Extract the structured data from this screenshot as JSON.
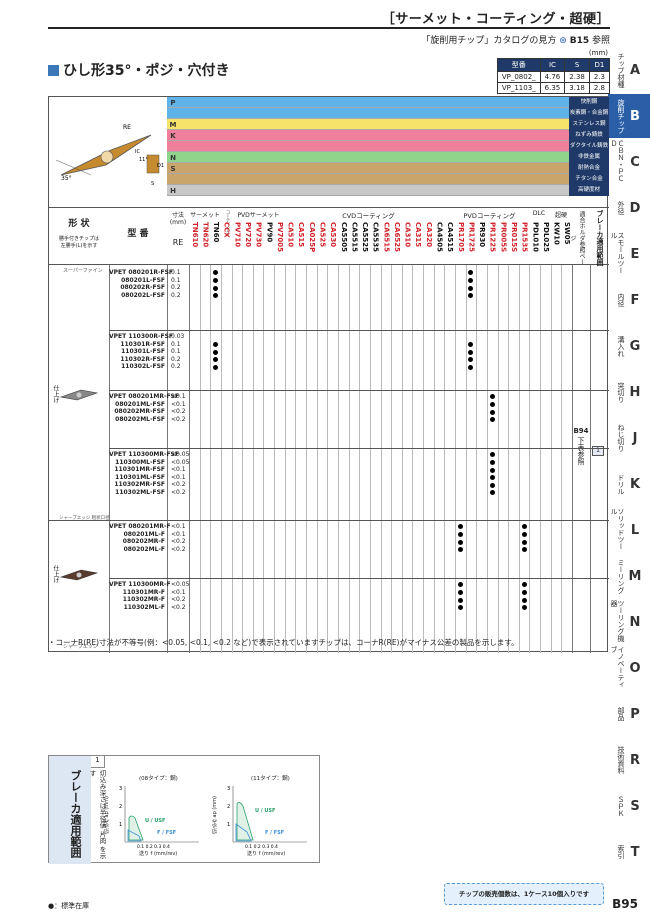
{
  "header": {
    "category": "［サーメット・コーティング・超硬］",
    "catalog_note_prefix": "「旋削用チップ」カタログの見方",
    "catalog_ref": "B15",
    "catalog_note_suffix": "参照",
    "unit": "(mm)"
  },
  "title": "ひし形35°・ポジ・穴付き",
  "dims": {
    "headers": [
      "型番",
      "IC",
      "S",
      "D1"
    ],
    "rows": [
      [
        "VP_0802_",
        "4.76",
        "2.38",
        "2.3"
      ],
      [
        "VP_1103_",
        "6.35",
        "3.18",
        "2.8"
      ]
    ]
  },
  "grades_iso": [
    {
      "key": "P",
      "label": "快削鋼",
      "color": "#5fb3e8"
    },
    {
      "key": "M",
      "label": "ステンレス鋼",
      "color": "#f6e36a"
    },
    {
      "key": "K",
      "label": "ダクタイル鋳鉄",
      "color": "#ef7f9a"
    },
    {
      "key": "N",
      "label": "非鉄金属",
      "color": "#8fd48a"
    },
    {
      "key": "S",
      "label": "耐熱合金",
      "color": "#c9a46b"
    },
    {
      "key": "H",
      "label": "高硬度材",
      "color": "#c8c8c8"
    }
  ],
  "grade_tags": [
    "快削鋼",
    "炭素鋼・合金鋼",
    "ステンレス鋼",
    "ねずみ鋳鉄",
    "ダクタイル鋳鉄",
    "非鉄金属",
    "耐熱合金",
    "チタン合金",
    "高硬度材"
  ],
  "col_headers": {
    "shape": "形 状",
    "model": "型 番",
    "shape_note": "勝手付きチップは\n左勝手(L)を示す",
    "dims": "寸法\n(mm)",
    "re": "RE",
    "cermet": "サーメット",
    "coated_cermet": "コーティング",
    "pvd_cermet": "PVDサーメット",
    "cvd": "CVDコーティング",
    "pvd": "PVDコーティング",
    "dlc": "DLC",
    "carbide": "超硬",
    "holder": "適合ホルダ参照ページ",
    "breaker": "ブレーカ適用範囲"
  },
  "grade_cols": [
    "TN610",
    "TN620",
    "TN60",
    "CCX",
    "PV710",
    "PV720",
    "PV730",
    "PV90",
    "PV7005",
    "CA510",
    "CA515",
    "CA025P",
    "CA525",
    "CA530",
    "CA5505",
    "CA5515",
    "CA5525",
    "CA5535",
    "CA6515",
    "CA6525",
    "CA310",
    "CA315",
    "CA320",
    "CA4505",
    "CA4515",
    "PR1705",
    "PR1725",
    "PR930",
    "PR1225",
    "PR005S",
    "PR015S",
    "PR1535",
    "PDL010",
    "PDL025",
    "KW10",
    "SW05"
  ],
  "labels": {
    "super_fine": "スーパーファイン",
    "sharp_bold": "シャープエッジ 粗状口径",
    "finishing": "仕上げ",
    "sharp_edge": "シャープエッジ",
    "holder_ref": "B94",
    "holder_ref2": "下表参照",
    "breaker_no": "1"
  },
  "groups": [
    {
      "models": [
        "VPET 080201R-FSF",
        "080201L-FSF",
        "080202R-FSF",
        "080202L-FSF"
      ],
      "re": [
        "0.1",
        "0.1",
        "0.2",
        "0.2"
      ]
    },
    {
      "models": [
        "VPET 110300R-FSF",
        "110301R-FSF",
        "110301L-FSF",
        "110302R-FSF",
        "110302L-FSF"
      ],
      "re": [
        "0.03",
        "0.1",
        "0.1",
        "0.2",
        "0.2"
      ]
    },
    {
      "models": [
        "VPET 080201MR-FSF",
        "080201ML-FSF",
        "080202MR-FSF",
        "080202ML-FSF"
      ],
      "re": [
        "<0.1",
        "<0.1",
        "<0.2",
        "<0.2"
      ]
    },
    {
      "models": [
        "VPET 110300MR-FSF",
        "110300ML-FSF",
        "110301MR-FSF",
        "110301ML-FSF",
        "110302MR-FSF",
        "110302ML-FSF"
      ],
      "re": [
        "<0.05",
        "<0.05",
        "<0.1",
        "<0.1",
        "<0.2",
        "<0.2"
      ]
    },
    {
      "models": [
        "VPET 080201MR-F",
        "080201ML-F",
        "080202MR-F",
        "080202ML-F"
      ],
      "re": [
        "<0.1",
        "<0.1",
        "<0.2",
        "<0.2"
      ]
    },
    {
      "models": [
        "VPET 110300MR-F",
        "110301MR-F",
        "110302MR-F",
        "110302ML-F"
      ],
      "re": [
        "<0.05",
        "<0.1",
        "<0.2",
        "<0.2"
      ]
    }
  ],
  "note": "・コーナR(RE)寸法が不等号(例：<0.05, <0.1, <0.2 など)で表示されていますチップは、コーナR(RE)がマイナス公差の製品を示します。",
  "breaker": {
    "title": "ブレーカ適用範囲",
    "sub": "切込み深さは半径値 片肉 を示す",
    "no": "1",
    "chart1": {
      "title": "(08タイプ：鋼)",
      "xlabel": "送り f (mm/rev)",
      "ylabel": "切込み ap (mm)",
      "xticks": [
        "0.1",
        "0.2",
        "0.3",
        "0.4"
      ],
      "yticks": [
        "1",
        "2",
        "3"
      ],
      "l1": "U / USF",
      "l2": "F / FSF"
    },
    "chart2": {
      "title": "(11タイプ：鋼)",
      "xlabel": "送り f (mm/rev)",
      "ylabel": "切込み ap (mm)",
      "xticks": [
        "0.1",
        "0.2",
        "0.3",
        "0.4"
      ],
      "yticks": [
        "1",
        "2",
        "3"
      ],
      "l1": "U / USF",
      "l2": "F / FSF"
    }
  },
  "legend": "●：標準在庫",
  "badge": "チップの販売個数は、1ケース10個入りです",
  "page": "B95",
  "index": [
    {
      "jp": "チップ材種",
      "lt": "A"
    },
    {
      "jp": "旋削チップ",
      "lt": "B",
      "on": true
    },
    {
      "jp": "ＣＢＮ・ＰＣＤ",
      "lt": "C"
    },
    {
      "jp": "外径",
      "lt": "D"
    },
    {
      "jp": "スモールツール",
      "lt": "E"
    },
    {
      "jp": "内径",
      "lt": "F"
    },
    {
      "jp": "溝入れ",
      "lt": "G"
    },
    {
      "jp": "突切り",
      "lt": "H"
    },
    {
      "jp": "ねじ切り",
      "lt": "J"
    },
    {
      "jp": "ドリル",
      "lt": "K"
    },
    {
      "jp": "ソリッドツール",
      "lt": "L"
    },
    {
      "jp": "ミーリング",
      "lt": "M"
    },
    {
      "jp": "ツーリング機器",
      "lt": "N"
    },
    {
      "jp": "イノベーティブ",
      "lt": "O"
    },
    {
      "jp": "部品",
      "lt": "P"
    },
    {
      "jp": "技術資料",
      "lt": "R"
    },
    {
      "jp": "ＳＰＫ",
      "lt": "S"
    },
    {
      "jp": "索引",
      "lt": "T"
    }
  ]
}
